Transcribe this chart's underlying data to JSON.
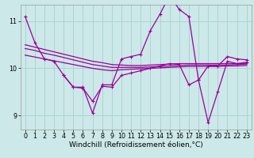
{
  "background_color": "#cce8e8",
  "grid_color": "#aad4d4",
  "line_color": "#990099",
  "xlim": [
    -0.5,
    23.5
  ],
  "ylim": [
    8.7,
    11.35
  ],
  "xticks": [
    0,
    1,
    2,
    3,
    4,
    5,
    6,
    7,
    8,
    9,
    10,
    11,
    12,
    13,
    14,
    15,
    16,
    17,
    18,
    19,
    20,
    21,
    22,
    23
  ],
  "yticks": [
    9,
    10,
    11
  ],
  "xlabel": "Windchill (Refroidissement éolien,°C)",
  "curves": [
    {
      "x": [
        0,
        1,
        2,
        3,
        4,
        5,
        6,
        7,
        8,
        9,
        10,
        11,
        12,
        13,
        14,
        15,
        16,
        17,
        18,
        19,
        20,
        21,
        22,
        23
      ],
      "y": [
        11.1,
        10.55,
        10.2,
        10.15,
        9.85,
        9.6,
        9.6,
        9.05,
        9.65,
        9.65,
        10.2,
        10.25,
        10.3,
        10.8,
        11.15,
        11.55,
        11.25,
        11.1,
        9.75,
        10.05,
        10.05,
        10.25,
        10.2,
        10.18
      ],
      "marker": true,
      "lw": 0.9
    },
    {
      "x": [
        0,
        1,
        2,
        3,
        4,
        5,
        6,
        7,
        8,
        9,
        10,
        11,
        12,
        13,
        14,
        15,
        16,
        17,
        18,
        19,
        20,
        21,
        22,
        23
      ],
      "y": [
        10.5,
        10.45,
        10.4,
        10.35,
        10.3,
        10.25,
        10.2,
        10.15,
        10.12,
        10.08,
        10.07,
        10.06,
        10.06,
        10.07,
        10.08,
        10.09,
        10.1,
        10.1,
        10.1,
        10.1,
        10.1,
        10.1,
        10.1,
        10.1
      ],
      "marker": false,
      "lw": 0.9
    },
    {
      "x": [
        0,
        1,
        2,
        3,
        4,
        5,
        6,
        7,
        8,
        9,
        10,
        11,
        12,
        13,
        14,
        15,
        16,
        17,
        18,
        19,
        20,
        21,
        22,
        23
      ],
      "y": [
        10.42,
        10.38,
        10.32,
        10.28,
        10.23,
        10.18,
        10.13,
        10.08,
        10.05,
        10.02,
        10.02,
        10.02,
        10.02,
        10.03,
        10.04,
        10.05,
        10.06,
        10.07,
        10.07,
        10.07,
        10.07,
        10.07,
        10.08,
        10.09
      ],
      "marker": false,
      "lw": 0.9
    },
    {
      "x": [
        0,
        1,
        2,
        3,
        4,
        5,
        6,
        7,
        8,
        9,
        10,
        11,
        12,
        13,
        14,
        15,
        16,
        17,
        18,
        19,
        20,
        21,
        22,
        23
      ],
      "y": [
        10.28,
        10.24,
        10.2,
        10.16,
        10.12,
        10.08,
        10.04,
        10.0,
        9.97,
        9.95,
        9.97,
        9.98,
        9.99,
        10.0,
        10.01,
        10.02,
        10.03,
        10.04,
        10.04,
        10.04,
        10.04,
        10.05,
        10.05,
        10.06
      ],
      "marker": false,
      "lw": 0.9
    },
    {
      "x": [
        4,
        5,
        6,
        7,
        8,
        9,
        10,
        11,
        12,
        13,
        14,
        15,
        16,
        17,
        18,
        19,
        20,
        21,
        22,
        23
      ],
      "y": [
        9.85,
        9.6,
        9.58,
        9.3,
        9.62,
        9.6,
        9.85,
        9.9,
        9.95,
        10.0,
        10.05,
        10.1,
        10.08,
        9.65,
        9.75,
        8.85,
        9.5,
        10.15,
        10.1,
        10.13
      ],
      "marker": true,
      "lw": 0.9
    }
  ],
  "xlabel_fontsize": 6.5,
  "tick_fontsize": 5.8
}
